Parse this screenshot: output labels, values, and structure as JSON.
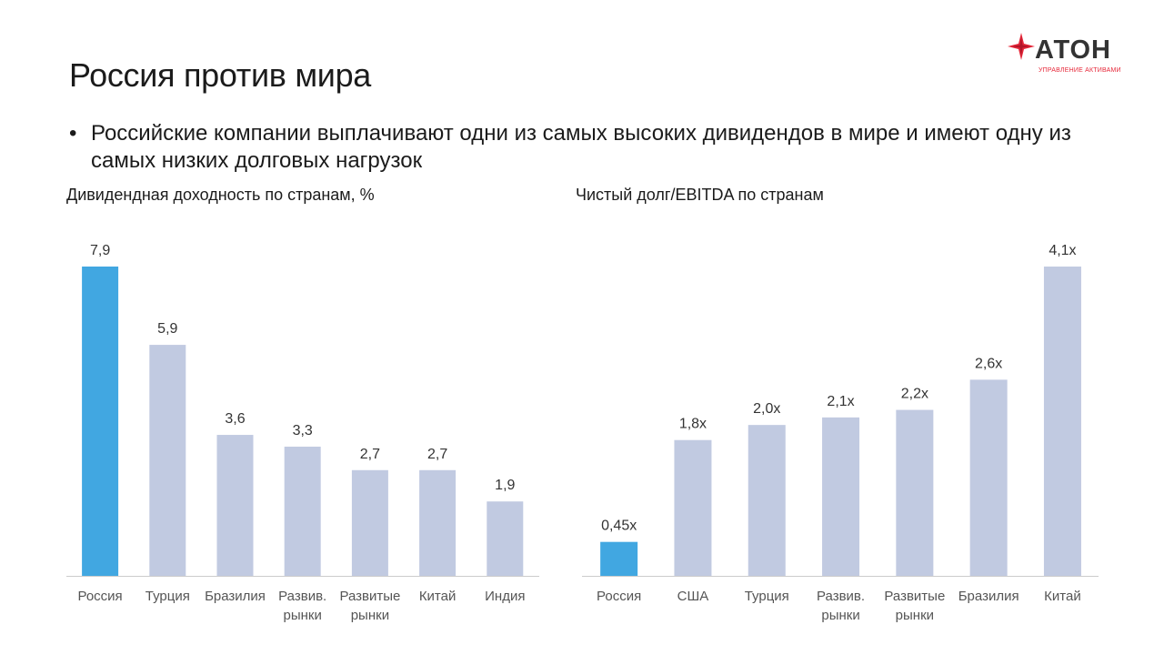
{
  "page": {
    "title": "Россия против мира",
    "bullet": "Российские компании выплачивают одни из самых высоких дивидендов в мире и имеют одну из самых низких долговых нагрузок"
  },
  "logo": {
    "text": "АТОН",
    "subtitle": "управление активами",
    "color": "#e6283a",
    "icon": "star-mark-icon"
  },
  "colors": {
    "highlight": "#41a7e1",
    "bar": "#c1cae1",
    "axis": "#cccccc"
  },
  "chart_data": [
    {
      "type": "bar",
      "title": "Дивидендная доходность по странам, %",
      "categories": [
        "Россия",
        "Турция",
        "Бразилия",
        "Развив. рынки",
        "Развитые рынки",
        "Китай",
        "Индия"
      ],
      "values": [
        7.9,
        5.9,
        3.6,
        3.3,
        2.7,
        2.7,
        1.9
      ],
      "value_labels": [
        "7,9",
        "5,9",
        "3,6",
        "3,3",
        "2,7",
        "2,7",
        "1,9"
      ],
      "highlight_index": 0,
      "ylim": [
        0,
        7.9
      ],
      "grid": false,
      "legend": "none"
    },
    {
      "type": "bar",
      "title": "Чистый долг/EBITDA по странам",
      "categories": [
        "Россия",
        "США",
        "Турция",
        "Развив. рынки",
        "Развитые рынки",
        "Бразилия",
        "Китай"
      ],
      "values": [
        0.45,
        1.8,
        2.0,
        2.1,
        2.2,
        2.6,
        4.1
      ],
      "value_labels": [
        "0,45x",
        "1,8x",
        "2,0x",
        "2,1x",
        "2,2x",
        "2,6x",
        "4,1x"
      ],
      "highlight_index": 0,
      "ylim": [
        0,
        4.1
      ],
      "grid": false,
      "legend": "none"
    }
  ]
}
